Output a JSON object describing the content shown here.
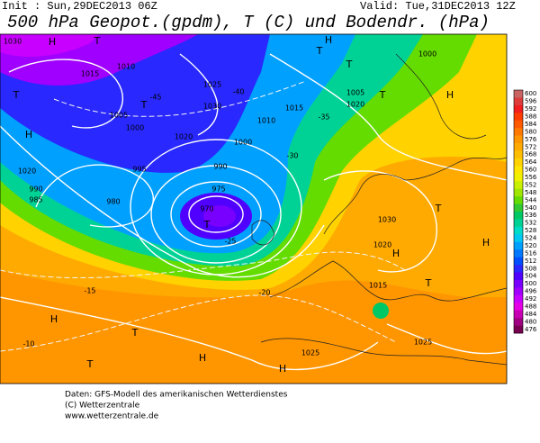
{
  "header": {
    "init": "Init : Sun,29DEC2013 06Z",
    "valid": "Valid: Tue,31DEC2013 12Z",
    "title": "500 hPa Geopot.(gpdm), T (C) und Bodendr. (hPa)"
  },
  "color_scale": {
    "labels": [
      "600",
      "596",
      "592",
      "588",
      "584",
      "580",
      "576",
      "572",
      "568",
      "564",
      "560",
      "556",
      "552",
      "548",
      "544",
      "540",
      "536",
      "532",
      "528",
      "524",
      "520",
      "516",
      "512",
      "508",
      "504",
      "500",
      "496",
      "492",
      "488",
      "484",
      "480",
      "476"
    ],
    "colors": [
      "#c86464",
      "#dc3c3c",
      "#f01e1e",
      "#ff3c00",
      "#ff5a00",
      "#ff7800",
      "#ff9600",
      "#ffaa00",
      "#ffbe00",
      "#ffd200",
      "#ffe600",
      "#f0f000",
      "#c8f000",
      "#a0e600",
      "#64dc00",
      "#32c832",
      "#00c864",
      "#00d296",
      "#00dcc8",
      "#00c8f0",
      "#00a0ff",
      "#0078ff",
      "#0050ff",
      "#2828ff",
      "#5000ff",
      "#7800ff",
      "#a000ff",
      "#c800ff",
      "#e600e6",
      "#c800b4",
      "#a00082",
      "#780050"
    ]
  },
  "map_labels": [
    "1030",
    "H",
    "T",
    "1015",
    "1010",
    "1025",
    "1030",
    "1005",
    "T",
    "1000",
    "1020",
    "H",
    "T",
    "1020",
    "995",
    "990",
    "985",
    "980",
    "975",
    "970",
    "T",
    "990",
    "1000",
    "1010",
    "1015",
    "T",
    "T",
    "H",
    "1000",
    "T",
    "1020",
    "1005",
    "H",
    "T",
    "H",
    "T",
    "1030",
    "1020",
    "H",
    "1015",
    "1025",
    "1025",
    "H",
    "T",
    "T",
    "H",
    "H",
    "-10",
    "-15",
    "-20",
    "-25",
    "-30",
    "-35",
    "-40",
    "-45"
  ],
  "footer": {
    "lines": [
      "Daten: GFS-Modell des amerikanischen Wetterdienstes",
      "(C) Wetterzentrale",
      "www.wetterzentrale.de"
    ]
  }
}
